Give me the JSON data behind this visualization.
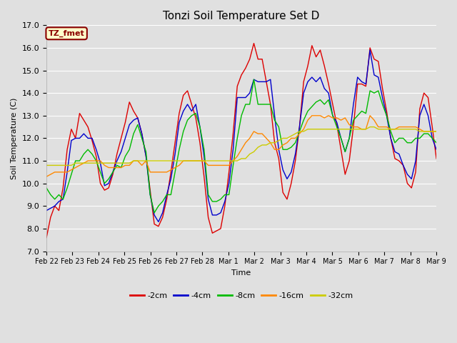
{
  "title": "Tonzi Soil Temperature Set D",
  "xlabel": "Time",
  "ylabel": "Soil Temperature (C)",
  "ylim": [
    7.0,
    17.0
  ],
  "yticks": [
    7.0,
    8.0,
    9.0,
    10.0,
    11.0,
    12.0,
    13.0,
    14.0,
    15.0,
    16.0,
    17.0
  ],
  "xtick_labels": [
    "Feb 22",
    "Feb 23",
    "Feb 24",
    "Feb 25",
    "Feb 26",
    "Feb 27",
    "Feb 28",
    "Mar 1",
    "Mar 2",
    "Mar 3",
    "Mar 4",
    "Mar 5",
    "Mar 6",
    "Mar 7",
    "Mar 8",
    "Mar 9"
  ],
  "colors": {
    "-2cm": "#dd0000",
    "-4cm": "#0000cc",
    "-8cm": "#00bb00",
    "-16cm": "#ff8800",
    "-32cm": "#cccc00"
  },
  "legend_label": "TZ_fmet",
  "background_color": "#e0e0e0",
  "plot_bg_color": "#e0e0e0",
  "grid_color": "#ffffff",
  "series": {
    "-2cm": [
      7.6,
      8.5,
      9.0,
      8.8,
      9.8,
      11.5,
      12.4,
      12.0,
      13.1,
      12.8,
      12.5,
      11.9,
      11.2,
      10.0,
      9.7,
      9.8,
      10.4,
      11.3,
      12.0,
      12.7,
      13.6,
      13.2,
      12.9,
      12.2,
      11.2,
      9.7,
      8.2,
      8.1,
      8.5,
      9.3,
      10.5,
      11.8,
      13.1,
      13.9,
      14.1,
      13.5,
      12.9,
      11.8,
      10.3,
      8.5,
      7.8,
      7.9,
      8.0,
      9.0,
      10.5,
      12.2,
      14.3,
      14.8,
      15.1,
      15.5,
      16.2,
      15.5,
      15.5,
      14.5,
      13.5,
      11.8,
      11.1,
      9.6,
      9.3,
      10.0,
      11.0,
      12.5,
      14.5,
      15.2,
      16.1,
      15.6,
      15.9,
      15.2,
      14.4,
      13.5,
      12.6,
      11.5,
      10.4,
      11.0,
      12.5,
      14.4,
      14.4,
      14.3,
      16.0,
      15.5,
      15.4,
      14.2,
      13.2,
      12.0,
      11.1,
      11.0,
      10.8,
      10.0,
      9.8,
      10.5,
      13.3,
      14.0,
      13.8,
      12.5,
      11.1
    ],
    "-4cm": [
      8.8,
      8.9,
      9.0,
      9.2,
      9.3,
      10.5,
      11.9,
      12.0,
      12.0,
      12.2,
      12.0,
      12.0,
      11.5,
      10.9,
      9.9,
      10.0,
      10.5,
      11.0,
      11.4,
      12.0,
      12.6,
      12.8,
      12.9,
      12.2,
      11.2,
      9.5,
      8.6,
      8.3,
      8.7,
      9.5,
      10.2,
      11.3,
      12.7,
      13.2,
      13.5,
      13.2,
      13.5,
      12.5,
      11.2,
      9.3,
      8.6,
      8.6,
      8.7,
      9.2,
      10.0,
      11.5,
      13.8,
      13.8,
      13.8,
      14.0,
      14.6,
      14.5,
      14.5,
      14.5,
      14.6,
      13.0,
      11.5,
      10.6,
      10.2,
      10.5,
      11.3,
      12.5,
      14.0,
      14.5,
      14.7,
      14.5,
      14.7,
      14.2,
      14.0,
      13.0,
      12.7,
      12.0,
      11.4,
      12.0,
      13.5,
      14.7,
      14.5,
      14.4,
      15.9,
      14.8,
      14.7,
      13.8,
      13.0,
      12.0,
      11.4,
      11.3,
      10.8,
      10.4,
      10.2,
      11.0,
      13.0,
      13.5,
      13.0,
      12.0,
      11.5
    ],
    "-8cm": [
      9.8,
      9.5,
      9.3,
      9.5,
      9.3,
      9.8,
      10.4,
      11.0,
      11.0,
      11.3,
      11.5,
      11.3,
      11.0,
      10.5,
      10.0,
      10.2,
      10.5,
      10.8,
      10.7,
      11.2,
      11.5,
      12.2,
      12.6,
      12.0,
      11.4,
      9.5,
      8.7,
      9.0,
      9.2,
      9.5,
      9.5,
      10.5,
      11.5,
      12.3,
      12.8,
      13.0,
      13.1,
      12.5,
      11.5,
      9.5,
      9.2,
      9.2,
      9.3,
      9.5,
      9.5,
      10.8,
      12.0,
      13.0,
      13.5,
      13.5,
      14.6,
      13.5,
      13.5,
      13.5,
      13.5,
      12.8,
      12.5,
      11.5,
      11.5,
      11.6,
      11.8,
      12.3,
      12.8,
      13.2,
      13.4,
      13.6,
      13.7,
      13.5,
      13.7,
      13.0,
      12.5,
      12.0,
      11.4,
      12.0,
      12.8,
      13.0,
      13.2,
      13.1,
      14.1,
      14.0,
      14.1,
      13.5,
      13.0,
      12.3,
      11.8,
      12.0,
      12.0,
      11.8,
      11.8,
      12.0,
      12.0,
      12.2,
      12.2,
      12.0,
      11.8
    ],
    "-16cm": [
      10.3,
      10.4,
      10.5,
      10.5,
      10.5,
      10.5,
      10.6,
      10.7,
      10.8,
      10.9,
      11.0,
      11.0,
      11.0,
      11.0,
      10.8,
      10.7,
      10.7,
      10.7,
      10.7,
      10.8,
      10.8,
      11.0,
      11.0,
      10.8,
      11.0,
      10.5,
      10.5,
      10.5,
      10.5,
      10.5,
      10.6,
      10.7,
      10.8,
      11.0,
      11.0,
      11.0,
      11.0,
      11.0,
      11.0,
      10.8,
      10.8,
      10.8,
      10.8,
      10.8,
      10.8,
      11.0,
      11.2,
      11.5,
      11.8,
      12.0,
      12.3,
      12.2,
      12.2,
      12.0,
      11.8,
      11.5,
      11.5,
      11.7,
      11.8,
      12.0,
      12.0,
      12.2,
      12.4,
      12.8,
      13.0,
      13.0,
      13.0,
      12.9,
      13.0,
      12.9,
      12.9,
      12.8,
      12.9,
      12.6,
      12.5,
      12.5,
      12.4,
      12.4,
      13.0,
      12.8,
      12.5,
      12.5,
      12.5,
      12.4,
      12.4,
      12.5,
      12.5,
      12.5,
      12.5,
      12.5,
      12.4,
      12.3,
      12.3,
      12.3,
      12.3
    ],
    "-32cm": [
      10.8,
      10.8,
      10.8,
      10.8,
      10.8,
      10.8,
      10.8,
      10.9,
      10.9,
      10.9,
      10.9,
      10.9,
      10.9,
      10.9,
      10.9,
      10.9,
      10.9,
      10.9,
      10.9,
      10.9,
      10.9,
      11.0,
      11.0,
      11.0,
      11.0,
      11.0,
      11.0,
      11.0,
      11.0,
      11.0,
      11.0,
      11.0,
      11.0,
      11.0,
      11.0,
      11.0,
      11.0,
      11.0,
      11.0,
      11.0,
      11.0,
      11.0,
      11.0,
      11.0,
      11.0,
      11.0,
      11.0,
      11.1,
      11.1,
      11.3,
      11.4,
      11.6,
      11.7,
      11.7,
      11.8,
      11.8,
      11.9,
      12.0,
      12.0,
      12.1,
      12.2,
      12.3,
      12.3,
      12.4,
      12.4,
      12.4,
      12.4,
      12.4,
      12.4,
      12.4,
      12.4,
      12.4,
      12.4,
      12.4,
      12.4,
      12.4,
      12.4,
      12.4,
      12.5,
      12.5,
      12.4,
      12.4,
      12.4,
      12.4,
      12.4,
      12.4,
      12.4,
      12.4,
      12.4,
      12.4,
      12.3,
      12.3,
      12.3,
      12.3,
      12.3
    ]
  }
}
